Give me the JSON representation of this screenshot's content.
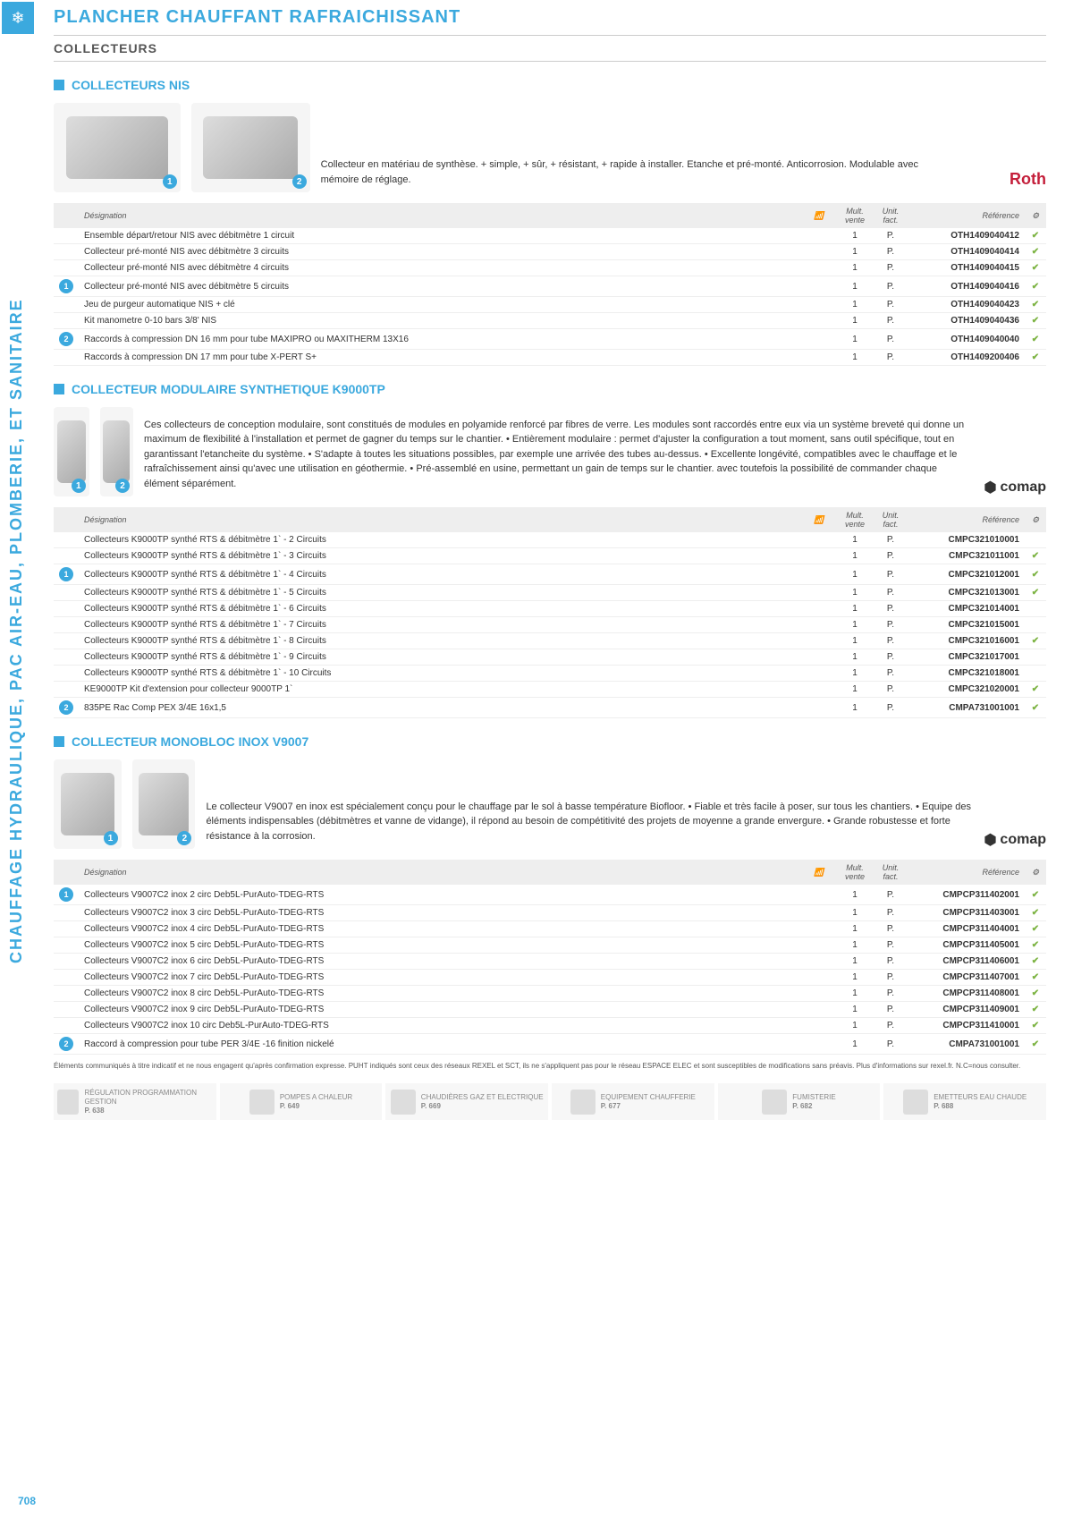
{
  "page_number": "708",
  "side_label": "CHAUFFAGE HYDRAULIQUE, PAC AIR-EAU, PLOMBERIE, ET SANITAIRE",
  "main_title": "PLANCHER  CHAUFFANT RAFRAICHISSANT",
  "sub_title": "COLLECTEURS",
  "table_headers": {
    "designation": "Désignation",
    "mult": "Mult. vente",
    "unit": "Unit. fact.",
    "ref": "Référence"
  },
  "sections": [
    {
      "title": "COLLECTEURS NIS",
      "brand": "Roth",
      "brand_type": "roth",
      "desc": "Collecteur en matériau de synthèse.\n+ simple, + sûr, + résistant, + rapide à installer.\nEtanche et pré-monté. Anticorrosion. Modulable avec mémoire de réglage.",
      "rows": [
        {
          "n": "",
          "d": "Ensemble départ/retour NIS avec débitmètre 1 circuit",
          "m": "1",
          "u": "P.",
          "r": "OTH1409040412",
          "k": "✔"
        },
        {
          "n": "",
          "d": "Collecteur pré-monté NIS avec débitmètre 3 circuits",
          "m": "1",
          "u": "P.",
          "r": "OTH1409040414",
          "k": "✔"
        },
        {
          "n": "",
          "d": "Collecteur pré-monté NIS avec débitmètre 4 circuits",
          "m": "1",
          "u": "P.",
          "r": "OTH1409040415",
          "k": "✔"
        },
        {
          "n": "1",
          "d": "Collecteur pré-monté NIS avec débitmètre 5 circuits",
          "m": "1",
          "u": "P.",
          "r": "OTH1409040416",
          "k": "✔"
        },
        {
          "n": "",
          "d": "Jeu de purgeur automatique NIS + clé",
          "m": "1",
          "u": "P.",
          "r": "OTH1409040423",
          "k": "✔"
        },
        {
          "n": "",
          "d": "Kit manometre 0-10 bars 3/8' NIS",
          "m": "1",
          "u": "P.",
          "r": "OTH1409040436",
          "k": "✔"
        },
        {
          "n": "2",
          "d": "Raccords à compression DN 16 mm pour tube MAXIPRO ou MAXITHERM 13X16",
          "m": "1",
          "u": "P.",
          "r": "OTH1409040040",
          "k": "✔"
        },
        {
          "n": "",
          "d": "Raccords à compression DN 17 mm pour tube X-PERT S+",
          "m": "1",
          "u": "P.",
          "r": "OTH1409200406",
          "k": "✔"
        }
      ]
    },
    {
      "title": "COLLECTEUR MODULAIRE SYNTHETIQUE K9000TP",
      "brand": "comap",
      "brand_type": "comap",
      "desc": "Ces collecteurs de conception modulaire, sont constitués de modules en polyamide renforcé par fibres de verre.\nLes modules sont raccordés entre eux via un système breveté qui donne un maximum de flexibilité à l'installation et permet de gagner du temps sur le chantier.\n• Entièrement modulaire : permet d'ajuster la configuration a tout moment, sans outil spécifique, tout en garantissant l'etancheite du système.\n• S'adapte à toutes les situations possibles, par exemple une arrivée des tubes au-dessus.\n• Excellente longévité, compatibles avec le chauffage et le rafraîchissement ainsi qu'avec une utilisation en géothermie.\n• Pré-assemblé en usine, permettant un gain de temps sur le chantier.\navec toutefois la possibilité de commander chaque élément séparément.",
      "rows": [
        {
          "n": "",
          "d": "Collecteurs K9000TP synthé RTS & débitmètre 1` - 2 Circuits",
          "m": "1",
          "u": "P.",
          "r": "CMPC321010001",
          "k": ""
        },
        {
          "n": "",
          "d": "Collecteurs K9000TP synthé RTS & débitmètre 1` - 3 Circuits",
          "m": "1",
          "u": "P.",
          "r": "CMPC321011001",
          "k": "✔"
        },
        {
          "n": "1",
          "d": "Collecteurs K9000TP synthé RTS & débitmètre 1` - 4 Circuits",
          "m": "1",
          "u": "P.",
          "r": "CMPC321012001",
          "k": "✔"
        },
        {
          "n": "",
          "d": "Collecteurs K9000TP synthé RTS & débitmètre 1` - 5 Circuits",
          "m": "1",
          "u": "P.",
          "r": "CMPC321013001",
          "k": "✔"
        },
        {
          "n": "",
          "d": "Collecteurs K9000TP synthé RTS & débitmètre 1` - 6 Circuits",
          "m": "1",
          "u": "P.",
          "r": "CMPC321014001",
          "k": ""
        },
        {
          "n": "",
          "d": "Collecteurs K9000TP synthé RTS & débitmètre 1` - 7 Circuits",
          "m": "1",
          "u": "P.",
          "r": "CMPC321015001",
          "k": ""
        },
        {
          "n": "",
          "d": "Collecteurs K9000TP synthé RTS & débitmètre 1` - 8 Circuits",
          "m": "1",
          "u": "P.",
          "r": "CMPC321016001",
          "k": "✔"
        },
        {
          "n": "",
          "d": "Collecteurs K9000TP synthé RTS & débitmètre 1` - 9 Circuits",
          "m": "1",
          "u": "P.",
          "r": "CMPC321017001",
          "k": ""
        },
        {
          "n": "",
          "d": "Collecteurs K9000TP synthé RTS & débitmètre 1` - 10 Circuits",
          "m": "1",
          "u": "P.",
          "r": "CMPC321018001",
          "k": ""
        },
        {
          "n": "",
          "d": "KE9000TP Kit d'extension pour collecteur 9000TP 1`",
          "m": "1",
          "u": "P.",
          "r": "CMPC321020001",
          "k": "✔"
        },
        {
          "n": "2",
          "d": "835PE Rac Comp PEX 3/4E 16x1,5",
          "m": "1",
          "u": "P.",
          "r": "CMPA731001001",
          "k": "✔"
        }
      ]
    },
    {
      "title": "COLLECTEUR MONOBLOC INOX V9007",
      "brand": "comap",
      "brand_type": "comap",
      "desc": "Le collecteur V9007 en inox est spécialement conçu pour le chauffage par le sol à basse température Biofloor.\n• Fiable et très facile à poser, sur tous les chantiers.\n• Equipe des éléments indispensables (débitmètres et vanne de vidange),\nil répond au besoin de compétitivité des projets de moyenne a grande envergure.\n• Grande robustesse et forte résistance à la corrosion.",
      "rows": [
        {
          "n": "1",
          "d": "Collecteurs V9007C2 inox 2 circ Deb5L-PurAuto-TDEG-RTS",
          "m": "1",
          "u": "P.",
          "r": "CMPCP311402001",
          "k": "✔"
        },
        {
          "n": "",
          "d": "Collecteurs V9007C2 inox 3 circ Deb5L-PurAuto-TDEG-RTS",
          "m": "1",
          "u": "P.",
          "r": "CMPCP311403001",
          "k": "✔"
        },
        {
          "n": "",
          "d": "Collecteurs V9007C2 inox 4 circ Deb5L-PurAuto-TDEG-RTS",
          "m": "1",
          "u": "P.",
          "r": "CMPCP311404001",
          "k": "✔"
        },
        {
          "n": "",
          "d": "Collecteurs V9007C2 inox 5 circ Deb5L-PurAuto-TDEG-RTS",
          "m": "1",
          "u": "P.",
          "r": "CMPCP311405001",
          "k": "✔"
        },
        {
          "n": "",
          "d": "Collecteurs V9007C2 inox 6 circ  Deb5L-PurAuto-TDEG-RTS",
          "m": "1",
          "u": "P.",
          "r": "CMPCP311406001",
          "k": "✔"
        },
        {
          "n": "",
          "d": "Collecteurs V9007C2 inox 7 circ Deb5L-PurAuto-TDEG-RTS",
          "m": "1",
          "u": "P.",
          "r": "CMPCP311407001",
          "k": "✔"
        },
        {
          "n": "",
          "d": "Collecteurs V9007C2 inox 8 circ Deb5L-PurAuto-TDEG-RTS",
          "m": "1",
          "u": "P.",
          "r": "CMPCP311408001",
          "k": "✔"
        },
        {
          "n": "",
          "d": "Collecteurs V9007C2 inox 9 circ Deb5L-PurAuto-TDEG-RTS",
          "m": "1",
          "u": "P.",
          "r": "CMPCP311409001",
          "k": "✔"
        },
        {
          "n": "",
          "d": "Collecteurs V9007C2 inox 10 circ Deb5L-PurAuto-TDEG-RTS",
          "m": "1",
          "u": "P.",
          "r": "CMPCP311410001",
          "k": "✔"
        },
        {
          "n": "2",
          "d": "Raccord à compression pour tube PER 3/4E -16 finition nickelé",
          "m": "1",
          "u": "P.",
          "r": "CMPA731001001",
          "k": "✔"
        }
      ]
    }
  ],
  "footer_note": "Éléments communiqués à titre indicatif et ne nous engagent qu'après confirmation expresse. PUHT indiqués sont ceux des réseaux REXEL et SCT, ils ne s'appliquent pas pour le réseau ESPACE ELEC et sont susceptibles de modifications sans préavis. Plus d'informations sur rexel.fr. N.C=nous consulter.",
  "nav": [
    {
      "t": "RÉGULATION PROGRAMMATION GESTION",
      "p": "P. 638"
    },
    {
      "t": "POMPES A CHALEUR",
      "p": "P. 649"
    },
    {
      "t": "CHAUDIÈRES GAZ ET ELECTRIQUE",
      "p": "P. 669"
    },
    {
      "t": "EQUIPEMENT CHAUFFERIE",
      "p": "P. 677"
    },
    {
      "t": "FUMISTERIE",
      "p": "P. 682"
    },
    {
      "t": "EMETTEURS EAU CHAUDE",
      "p": "P. 688"
    }
  ]
}
